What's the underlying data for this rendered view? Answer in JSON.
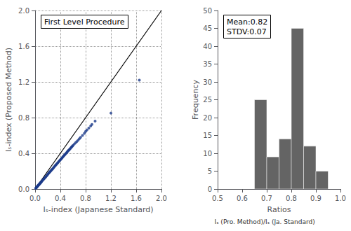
{
  "chart_data": [
    {
      "type": "scatter",
      "title": "First Level Procedure",
      "xlabel": "Iₛ-index (Japanese Standard)",
      "ylabel": "Iₛ-index (Proposed Method)",
      "color": "#1a3a8a",
      "x": [
        0.01,
        0.015,
        0.02,
        0.025,
        0.03,
        0.035,
        0.04,
        0.045,
        0.05,
        0.055,
        0.06,
        0.065,
        0.07,
        0.075,
        0.08,
        0.085,
        0.09,
        0.095,
        0.1,
        0.11,
        0.12,
        0.13,
        0.14,
        0.15,
        0.16,
        0.17,
        0.18,
        0.19,
        0.2,
        0.21,
        0.22,
        0.23,
        0.24,
        0.25,
        0.26,
        0.27,
        0.28,
        0.29,
        0.3,
        0.31,
        0.32,
        0.33,
        0.34,
        0.35,
        0.36,
        0.37,
        0.38,
        0.39,
        0.4,
        0.41,
        0.42,
        0.43,
        0.44,
        0.45,
        0.46,
        0.47,
        0.48,
        0.49,
        0.5,
        0.51,
        0.52,
        0.53,
        0.54,
        0.55,
        0.56,
        0.57,
        0.58,
        0.59,
        0.6,
        0.62,
        0.64,
        0.66,
        0.68,
        0.7,
        0.72,
        0.75,
        0.78,
        0.8,
        0.82,
        0.85,
        0.88,
        0.9,
        0.95,
        1.2,
        1.65
      ],
      "values": [
        0.008,
        0.012,
        0.016,
        0.02,
        0.025,
        0.028,
        0.033,
        0.037,
        0.041,
        0.045,
        0.049,
        0.053,
        0.057,
        0.061,
        0.065,
        0.069,
        0.073,
        0.077,
        0.082,
        0.09,
        0.098,
        0.106,
        0.114,
        0.122,
        0.13,
        0.138,
        0.146,
        0.155,
        0.163,
        0.172,
        0.18,
        0.188,
        0.196,
        0.204,
        0.213,
        0.22,
        0.228,
        0.237,
        0.245,
        0.254,
        0.262,
        0.27,
        0.278,
        0.286,
        0.295,
        0.303,
        0.311,
        0.319,
        0.328,
        0.335,
        0.343,
        0.351,
        0.36,
        0.368,
        0.376,
        0.384,
        0.392,
        0.4,
        0.408,
        0.417,
        0.425,
        0.433,
        0.44,
        0.448,
        0.456,
        0.464,
        0.473,
        0.481,
        0.489,
        0.503,
        0.518,
        0.532,
        0.546,
        0.563,
        0.578,
        0.6,
        0.623,
        0.645,
        0.66,
        0.683,
        0.706,
        0.724,
        0.76,
        0.85,
        1.22
      ],
      "line": {
        "x": [
          0.0,
          2.0
        ],
        "y": [
          0.0,
          2.0
        ],
        "color": "#000000"
      },
      "xlim": [
        0.0,
        2.0
      ],
      "ylim": [
        0.0,
        2.0
      ],
      "xticks": [
        {
          "value": 0.0,
          "label": "0.0"
        },
        0.4,
        0.8,
        1.2,
        1.6,
        {
          "value": 2.0,
          "label": "2.0"
        }
      ],
      "yticks": [
        {
          "value": 0.0,
          "label": "0.0"
        },
        0.4,
        0.8,
        1.2,
        1.6,
        {
          "value": 2.0,
          "label": "2.0"
        }
      ],
      "grid": true
    },
    {
      "type": "histogram",
      "xlabel": "Ratios",
      "ylabel": "Frequency",
      "annotations": [
        "Mean:0.82",
        "STDV:0.07"
      ],
      "caption": "Iₛ (Pro. Method)/Iₛ (Ja. Standard)",
      "color": "#646464",
      "bins": [
        0.6,
        0.65,
        0.7,
        0.75,
        0.8,
        0.85,
        0.9,
        0.95,
        1.0
      ],
      "values": [
        0,
        25,
        9,
        14,
        45,
        12,
        5,
        0
      ],
      "xlim": [
        0.5,
        1.0
      ],
      "ylim": [
        0,
        50
      ],
      "xticks": [
        0.5,
        0.6,
        0.7,
        0.8,
        0.9,
        {
          "value": 1.0,
          "label": "1.0"
        }
      ],
      "yticks": [
        0,
        5,
        10,
        15,
        20,
        25,
        30,
        35,
        40,
        45,
        50
      ],
      "grid": false
    }
  ]
}
